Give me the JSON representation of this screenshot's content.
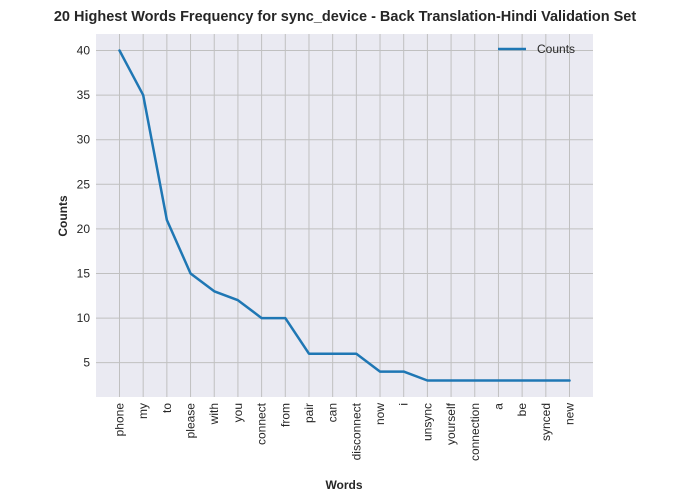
{
  "chart_data": {
    "type": "line",
    "title": "20 Highest Words Frequency for sync_device - Back Translation-Hindi Validation Set",
    "xlabel": "Words",
    "ylabel": "Counts",
    "categories": [
      "phone",
      "my",
      "to",
      "please",
      "with",
      "you",
      "connect",
      "from",
      "pair",
      "can",
      "disconnect",
      "now",
      "i",
      "unsync",
      "yourself",
      "connection",
      "a",
      "be",
      "synced",
      "new"
    ],
    "series": [
      {
        "name": "Counts",
        "values": [
          40,
          35,
          21,
          15,
          13,
          12,
          10,
          10,
          6,
          6,
          6,
          4,
          4,
          3,
          3,
          3,
          3,
          3,
          3,
          3
        ],
        "color": "#1f77b4"
      }
    ],
    "yticks": [
      5,
      10,
      15,
      20,
      25,
      30,
      35,
      40
    ],
    "ylim": [
      1.15,
      41.85
    ],
    "grid": true,
    "legend": "top-right",
    "colors": {
      "plot_background": "#eaeaf2",
      "grid": "#c0c0c0",
      "line": "#1f77b4"
    }
  }
}
